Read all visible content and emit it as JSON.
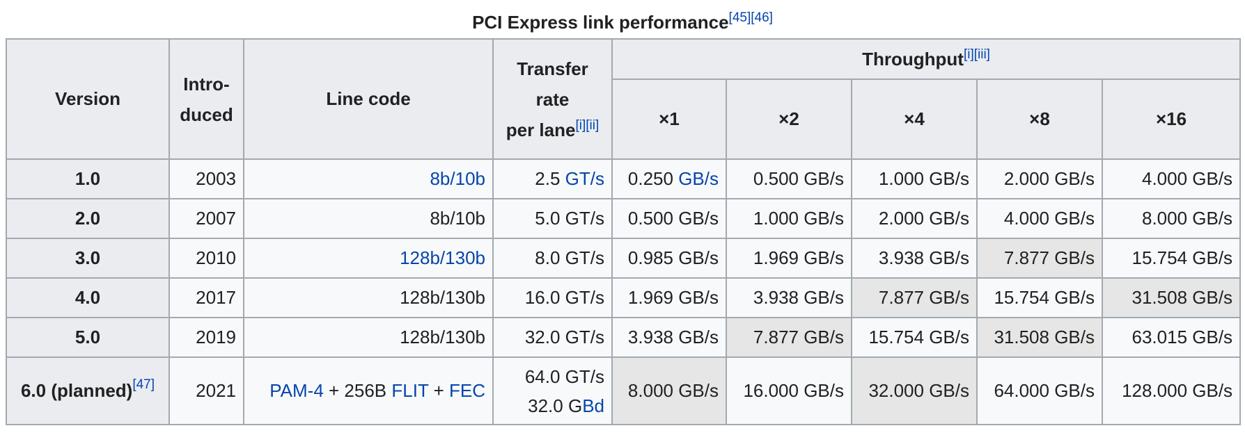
{
  "caption": {
    "title": "PCI Express link performance",
    "refs": "[45][46]"
  },
  "headers": {
    "version": "Version",
    "introduced_1": "Intro-",
    "introduced_2": "duced",
    "line_code": "Line code",
    "transfer_1": "Transfer",
    "transfer_2": "rate",
    "transfer_3": "per lane",
    "transfer_notes": "[i][ii]",
    "throughput": "Throughput",
    "throughput_notes": "[i][iii]",
    "lanes": [
      "×1",
      "×2",
      "×4",
      "×8",
      "×16"
    ]
  },
  "rows": [
    {
      "version": "1.0",
      "introduced": "2003",
      "line_code": "8b/10b",
      "rate_num": "2.5",
      "rate_unit": "GT/s",
      "x1_num": "0.250",
      "x1_unit": "GB/s",
      "x2": "0.500 GB/s",
      "x4": "1.000 GB/s",
      "x8": "2.000 GB/s",
      "x16": "4.000 GB/s"
    },
    {
      "version": "2.0",
      "introduced": "2007",
      "line_code": "8b/10b",
      "rate": "5.0 GT/s",
      "x1": "0.500 GB/s",
      "x2": "1.000 GB/s",
      "x4": "2.000 GB/s",
      "x8": "4.000 GB/s",
      "x16": "8.000 GB/s"
    },
    {
      "version": "3.0",
      "introduced": "2010",
      "line_code": "128b/130b",
      "rate": "8.0 GT/s",
      "x1": "0.985 GB/s",
      "x2": "1.969 GB/s",
      "x4": "3.938 GB/s",
      "x8": "7.877 GB/s",
      "x16": "15.754 GB/s"
    },
    {
      "version": "4.0",
      "introduced": "2017",
      "line_code": "128b/130b",
      "rate": "16.0 GT/s",
      "x1": "1.969 GB/s",
      "x2": "3.938 GB/s",
      "x4": "7.877 GB/s",
      "x8": "15.754 GB/s",
      "x16": "31.508 GB/s"
    },
    {
      "version": "5.0",
      "introduced": "2019",
      "line_code": "128b/130b",
      "rate": "32.0 GT/s",
      "x1": "3.938 GB/s",
      "x2": "7.877 GB/s",
      "x4": "15.754 GB/s",
      "x8": "31.508 GB/s",
      "x16": "63.015 GB/s"
    },
    {
      "version": "6.0 (planned)",
      "version_ref": "[47]",
      "introduced": "2021",
      "line_code_pam": "PAM-4",
      "line_code_plus1": " + 256B ",
      "line_code_flit": "FLIT",
      "line_code_plus2": " + ",
      "line_code_fec": "FEC",
      "rate_line1": "64.0 GT/s",
      "rate_line2_num": "32.0 G",
      "rate_line2_unit": "Bd",
      "x1": "8.000 GB/s",
      "x2": "16.000 GB/s",
      "x4": "32.000 GB/s",
      "x8": "64.000 GB/s",
      "x16": "128.000 GB/s"
    }
  ]
}
